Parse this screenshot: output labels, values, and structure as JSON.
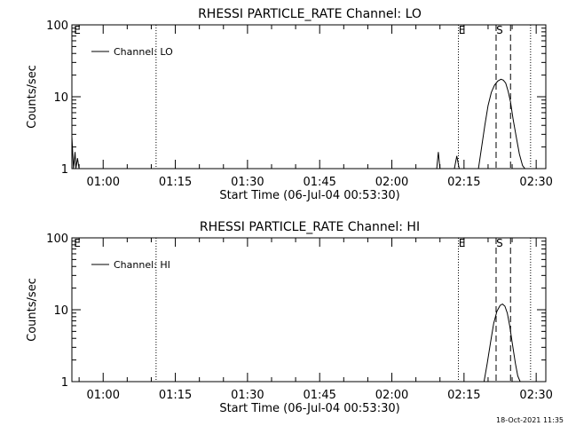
{
  "chart_data": [
    {
      "type": "line",
      "title": "RHESSI PARTICLE_RATE Channel: LO",
      "xlabel": "Start Time (06-Jul-04 00:53:30)",
      "ylabel": "Counts/sec",
      "yscale": "log",
      "ylim": [
        1,
        100
      ],
      "xlim": [
        "00:53:30",
        "02:32:00"
      ],
      "yticks": [
        {
          "v": 1,
          "label": "1"
        },
        {
          "v": 10,
          "label": "10"
        },
        {
          "v": 100,
          "label": "100"
        }
      ],
      "xticks": [
        "01:00",
        "01:15",
        "01:30",
        "01:45",
        "02:00",
        "02:15",
        "02:30"
      ],
      "legend": {
        "label": "Channel: LO",
        "position": "top-left"
      },
      "markers": [
        {
          "x": "01:11:00",
          "style": "dotted",
          "label": ""
        },
        {
          "x": "02:13:50",
          "style": "dotted",
          "label": "E"
        },
        {
          "x": "02:21:40",
          "style": "dashed",
          "label": "S"
        },
        {
          "x": "02:24:40",
          "style": "dashed",
          "label": ""
        },
        {
          "x": "02:28:50",
          "style": "dotted",
          "label": ""
        }
      ],
      "corner_label": "E",
      "series": [
        {
          "x": [
            "00:53:30",
            "00:53:50",
            "00:54:10",
            "00:54:20",
            "00:54:40",
            "00:55:00",
            "00:55:20",
            "02:09:20",
            "02:09:40",
            "02:10:00",
            "02:13:00",
            "02:13:30",
            "02:14:00",
            "02:18:00",
            "02:18:40",
            "02:19:20",
            "02:20:00",
            "02:20:40",
            "02:21:20",
            "02:22:00",
            "02:22:40",
            "02:23:10",
            "02:23:40",
            "02:24:10",
            "02:24:40",
            "02:25:10",
            "02:25:50",
            "02:26:30",
            "02:27:10",
            "02:27:40",
            "02:28:00"
          ],
          "y": [
            2.8,
            1.0,
            1.7,
            1.0,
            1.4,
            1.0,
            1.0,
            1.0,
            1.7,
            1.0,
            1.0,
            1.5,
            1.0,
            1.0,
            2.0,
            4.0,
            7.5,
            11.5,
            14.5,
            16.5,
            17.5,
            17.0,
            15.5,
            12.0,
            8.5,
            5.0,
            2.8,
            1.6,
            1.1,
            1.0,
            1.0
          ]
        }
      ]
    },
    {
      "type": "line",
      "title": "RHESSI PARTICLE_RATE Channel: HI",
      "xlabel": "Start Time (06-Jul-04 00:53:30)",
      "ylabel": "Counts/sec",
      "yscale": "log",
      "ylim": [
        1,
        100
      ],
      "xlim": [
        "00:53:30",
        "02:32:00"
      ],
      "yticks": [
        {
          "v": 1,
          "label": "1"
        },
        {
          "v": 10,
          "label": "10"
        },
        {
          "v": 100,
          "label": "100"
        }
      ],
      "xticks": [
        "01:00",
        "01:15",
        "01:30",
        "01:45",
        "02:00",
        "02:15",
        "02:30"
      ],
      "legend": {
        "label": "Channel: HI",
        "position": "top-left"
      },
      "markers": [
        {
          "x": "01:11:00",
          "style": "dotted",
          "label": ""
        },
        {
          "x": "02:13:50",
          "style": "dotted",
          "label": "E"
        },
        {
          "x": "02:21:40",
          "style": "dashed",
          "label": "S"
        },
        {
          "x": "02:24:40",
          "style": "dashed",
          "label": ""
        },
        {
          "x": "02:28:50",
          "style": "dotted",
          "label": ""
        }
      ],
      "corner_label": "E",
      "series": [
        {
          "x": [
            "02:19:10",
            "02:19:50",
            "02:20:30",
            "02:21:10",
            "02:21:50",
            "02:22:30",
            "02:23:00",
            "02:23:30",
            "02:24:00",
            "02:24:30",
            "02:25:00",
            "02:25:40",
            "02:26:10",
            "02:26:40"
          ],
          "y": [
            1.0,
            1.8,
            3.5,
            6.5,
            9.5,
            11.5,
            12.0,
            11.2,
            9.0,
            6.0,
            3.5,
            1.8,
            1.2,
            1.0
          ]
        }
      ]
    }
  ],
  "footer": {
    "timestamp": "18-Oct-2021 11:35"
  }
}
